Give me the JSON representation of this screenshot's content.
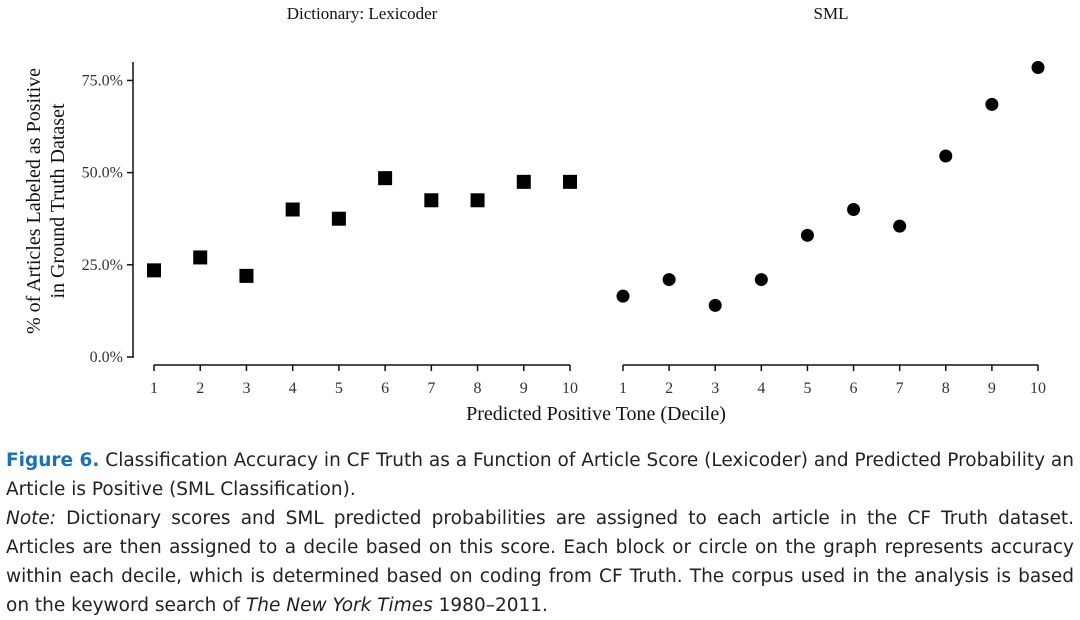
{
  "chart_data": [
    {
      "type": "scatter",
      "title": "Dictionary: Lexicoder",
      "marker": "square",
      "x": [
        1,
        2,
        3,
        4,
        5,
        6,
        7,
        8,
        9,
        10
      ],
      "y": [
        23.5,
        27,
        22,
        40,
        37.5,
        48.5,
        42.5,
        42.5,
        47.5,
        47.5
      ],
      "xticks": [
        "1",
        "2",
        "3",
        "4",
        "5",
        "6",
        "7",
        "8",
        "9",
        "10"
      ],
      "yticks": [
        "0.0%",
        "25.0%",
        "50.0%",
        "75.0%"
      ],
      "ylim": [
        0,
        80
      ]
    },
    {
      "type": "scatter",
      "title": "SML",
      "marker": "circle",
      "x": [
        1,
        2,
        3,
        4,
        5,
        6,
        7,
        8,
        9,
        10
      ],
      "y": [
        16.5,
        21,
        14,
        21,
        33,
        40,
        35.5,
        54.5,
        68.5,
        78.5
      ],
      "xticks": [
        "1",
        "2",
        "3",
        "4",
        "5",
        "6",
        "7",
        "8",
        "9",
        "10"
      ],
      "ylim": [
        0,
        80
      ]
    }
  ],
  "axes": {
    "ylabel_line1": "% of Articles Labeled as Positive",
    "ylabel_line2": "in Ground Truth Dataset",
    "xlabel": "Predicted Positive Tone (Decile)"
  },
  "caption": {
    "figure_label": "Figure 6.",
    "figure_text": " Classification Accuracy in CF Truth as a Function of Article Score (Lexicoder) and Predicted Probability an Article is Positive (SML Classification).",
    "note_label": "Note:",
    "note_text": " Dictionary scores and SML predicted probabilities are assigned to each article in the CF Truth dataset. Articles are then assigned to a decile based on this score. Each block or circle on the graph represents accuracy within each decile, which is determined based on coding from CF Truth. The corpus used in the analysis is based on the keyword search of ",
    "journal": "The New York Times",
    "note_end": " 1980–2011."
  }
}
